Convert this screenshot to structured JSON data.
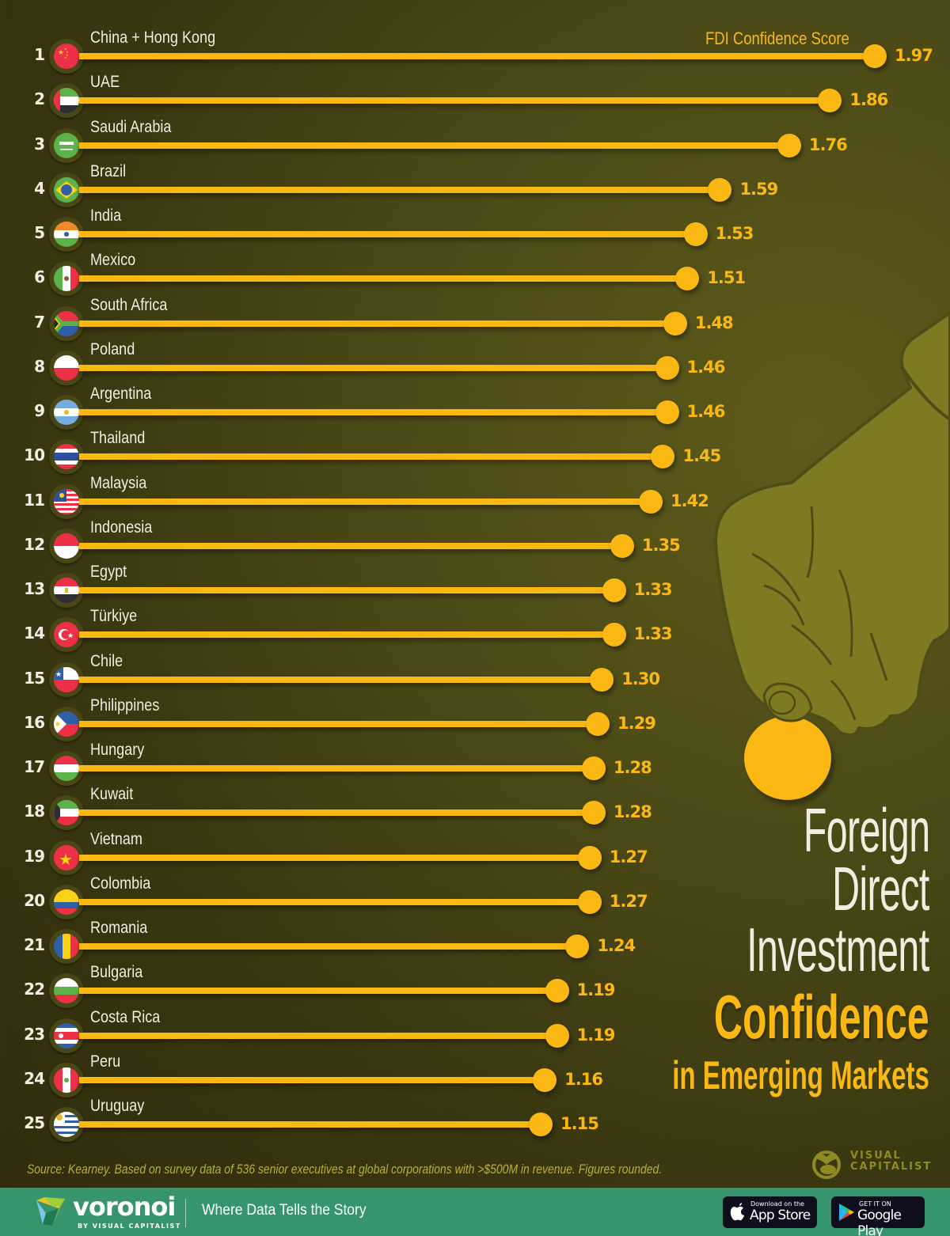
{
  "legend": "FDI Confidence Score",
  "title": {
    "line1": "Foreign",
    "line2": "Direct",
    "line3": "Investment",
    "line4": "Confidence",
    "line5": "in Emerging Markets"
  },
  "source": "Source: Kearney. Based on survey data of 536 senior executives at global corporations with >$500M in revenue. Figures rounded.",
  "brand": {
    "vc_line1": "VISUAL",
    "vc_line2": "CAPITALIST"
  },
  "footer": {
    "logo_name": "voronoi",
    "logo_by": "BY VISUAL CAPITALIST",
    "tagline": "Where Data Tells the Story",
    "app_store_small": "Download on the",
    "app_store_big": "App Store",
    "google_play_small": "GET IT ON",
    "google_play_big": "Google Play"
  },
  "colors": {
    "background": "#4f4d17",
    "accent": "#fbb812",
    "text": "#f3ece0",
    "footer": "#36956d",
    "hand": "#7e7a22"
  },
  "rows": [
    {
      "rank": "1",
      "name": "China + Hong Kong",
      "value": "1.97",
      "flag": "china"
    },
    {
      "rank": "2",
      "name": "UAE",
      "value": "1.86",
      "flag": "uae"
    },
    {
      "rank": "3",
      "name": "Saudi Arabia",
      "value": "1.76",
      "flag": "saudi"
    },
    {
      "rank": "4",
      "name": "Brazil",
      "value": "1.59",
      "flag": "brazil"
    },
    {
      "rank": "5",
      "name": "India",
      "value": "1.53",
      "flag": "india"
    },
    {
      "rank": "6",
      "name": "Mexico",
      "value": "1.51",
      "flag": "mexico"
    },
    {
      "rank": "7",
      "name": "South Africa",
      "value": "1.48",
      "flag": "southafrica"
    },
    {
      "rank": "8",
      "name": "Poland",
      "value": "1.46",
      "flag": "poland"
    },
    {
      "rank": "9",
      "name": "Argentina",
      "value": "1.46",
      "flag": "argentina"
    },
    {
      "rank": "10",
      "name": "Thailand",
      "value": "1.45",
      "flag": "thailand"
    },
    {
      "rank": "11",
      "name": "Malaysia",
      "value": "1.42",
      "flag": "malaysia"
    },
    {
      "rank": "12",
      "name": "Indonesia",
      "value": "1.35",
      "flag": "indonesia"
    },
    {
      "rank": "13",
      "name": "Egypt",
      "value": "1.33",
      "flag": "egypt"
    },
    {
      "rank": "14",
      "name": "Türkiye",
      "value": "1.33",
      "flag": "turkiye"
    },
    {
      "rank": "15",
      "name": "Chile",
      "value": "1.30",
      "flag": "chile"
    },
    {
      "rank": "16",
      "name": "Philippines",
      "value": "1.29",
      "flag": "philippines"
    },
    {
      "rank": "17",
      "name": "Hungary",
      "value": "1.28",
      "flag": "hungary"
    },
    {
      "rank": "18",
      "name": "Kuwait",
      "value": "1.28",
      "flag": "kuwait"
    },
    {
      "rank": "19",
      "name": "Vietnam",
      "value": "1.27",
      "flag": "vietnam"
    },
    {
      "rank": "20",
      "name": "Colombia",
      "value": "1.27",
      "flag": "colombia"
    },
    {
      "rank": "21",
      "name": "Romania",
      "value": "1.24",
      "flag": "romania"
    },
    {
      "rank": "22",
      "name": "Bulgaria",
      "value": "1.19",
      "flag": "bulgaria"
    },
    {
      "rank": "23",
      "name": "Costa Rica",
      "value": "1.19",
      "flag": "costarica"
    },
    {
      "rank": "24",
      "name": "Peru",
      "value": "1.16",
      "flag": "peru"
    },
    {
      "rank": "25",
      "name": "Uruguay",
      "value": "1.15",
      "flag": "uruguay"
    }
  ],
  "chart_data": {
    "type": "bar",
    "orientation": "horizontal",
    "title": "Foreign Direct Investment Confidence in Emerging Markets",
    "xlabel": "FDI Confidence Score",
    "ylabel": "",
    "categories": [
      "China + Hong Kong",
      "UAE",
      "Saudi Arabia",
      "Brazil",
      "India",
      "Mexico",
      "South Africa",
      "Poland",
      "Argentina",
      "Thailand",
      "Malaysia",
      "Indonesia",
      "Egypt",
      "Türkiye",
      "Chile",
      "Philippines",
      "Hungary",
      "Kuwait",
      "Vietnam",
      "Colombia",
      "Romania",
      "Bulgaria",
      "Costa Rica",
      "Peru",
      "Uruguay"
    ],
    "values": [
      1.97,
      1.86,
      1.76,
      1.59,
      1.53,
      1.51,
      1.48,
      1.46,
      1.46,
      1.45,
      1.42,
      1.35,
      1.33,
      1.33,
      1.3,
      1.29,
      1.28,
      1.28,
      1.27,
      1.27,
      1.24,
      1.19,
      1.19,
      1.16,
      1.15
    ],
    "ranks": [
      1,
      2,
      3,
      4,
      5,
      6,
      7,
      8,
      9,
      10,
      11,
      12,
      13,
      14,
      15,
      16,
      17,
      18,
      19,
      20,
      21,
      22,
      23,
      24,
      25
    ],
    "grid": false,
    "legend": "none",
    "source": "Source: Kearney. Based on survey data of 536 senior executives at global corporations with >$500M in revenue. Figures rounded."
  }
}
